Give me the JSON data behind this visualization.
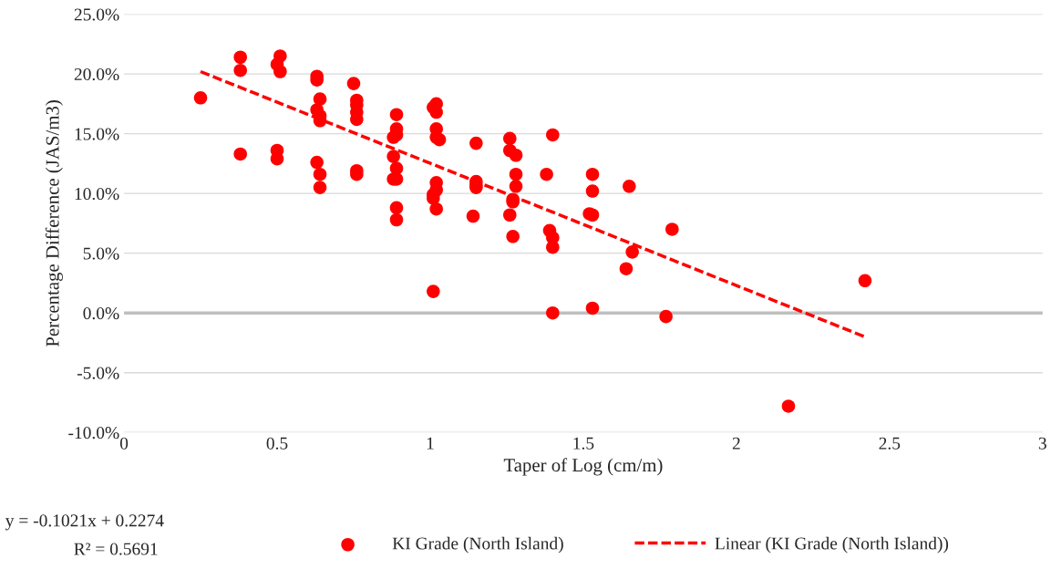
{
  "chart_data": {
    "type": "scatter",
    "xlabel": "Taper of Log (cm/m)",
    "ylabel": "Percentage Difference (JAS/m3)",
    "xlim": [
      0,
      3
    ],
    "xticks": [
      0,
      0.5,
      1,
      1.5,
      2,
      2.5,
      3
    ],
    "ylim": [
      -10,
      25
    ],
    "yticks": [
      {
        "value": -10,
        "label": "-10.0%"
      },
      {
        "value": -5,
        "label": "-5.0%"
      },
      {
        "value": 0,
        "label": "0.0%"
      },
      {
        "value": 5,
        "label": "5.0%"
      },
      {
        "value": 10,
        "label": "10.0%"
      },
      {
        "value": 15,
        "label": "15.0%"
      },
      {
        "value": 20,
        "label": "20.0%"
      },
      {
        "value": 25,
        "label": "25.0%"
      }
    ],
    "grid": "y",
    "legend": "bottom",
    "ref_lines": [
      {
        "axis": "y",
        "value": 0,
        "color": "#bfbfbf"
      }
    ],
    "annotations": [
      "y = -0.1021x + 0.2274",
      "R² = 0.5691"
    ],
    "series": [
      {
        "name": "KI Grade (North Island)",
        "marker": "circle",
        "color": "#ff0000",
        "x": [
          0.25,
          0.38,
          0.38,
          0.38,
          0.51,
          0.5,
          0.51,
          0.5,
          0.5,
          0.63,
          0.63,
          0.64,
          0.63,
          0.64,
          0.64,
          0.63,
          0.64,
          0.64,
          0.75,
          0.76,
          0.76,
          0.76,
          0.76,
          0.76,
          0.76,
          0.89,
          0.89,
          0.89,
          0.88,
          0.88,
          0.89,
          0.88,
          0.89,
          0.89,
          0.89,
          1.02,
          1.01,
          1.02,
          1.02,
          1.02,
          1.03,
          1.02,
          1.02,
          1.01,
          1.01,
          1.02,
          1.01,
          1.15,
          1.15,
          1.15,
          1.15,
          1.14,
          1.26,
          1.26,
          1.28,
          1.28,
          1.28,
          1.27,
          1.27,
          1.26,
          1.27,
          1.4,
          1.38,
          1.39,
          1.4,
          1.4,
          1.4,
          1.53,
          1.53,
          1.52,
          1.53,
          1.53,
          1.65,
          1.66,
          1.64,
          1.79,
          1.77,
          2.17,
          2.42
        ],
        "values": [
          18.0,
          21.4,
          20.3,
          13.3,
          21.5,
          20.8,
          20.2,
          13.6,
          12.9,
          19.8,
          19.5,
          17.9,
          17.0,
          16.5,
          16.1,
          12.6,
          11.6,
          10.5,
          19.2,
          17.8,
          17.4,
          16.8,
          16.2,
          11.9,
          11.6,
          16.6,
          15.4,
          14.9,
          14.7,
          13.1,
          12.1,
          11.2,
          11.2,
          8.8,
          7.8,
          17.5,
          17.2,
          16.8,
          15.4,
          14.7,
          14.5,
          10.9,
          10.3,
          9.9,
          9.6,
          8.7,
          1.8,
          14.2,
          11.0,
          10.7,
          10.5,
          8.1,
          14.6,
          13.6,
          13.2,
          11.6,
          10.6,
          9.5,
          9.3,
          8.2,
          6.4,
          14.9,
          11.6,
          6.9,
          6.3,
          5.5,
          0.0,
          11.6,
          10.2,
          8.3,
          8.2,
          0.4,
          10.6,
          5.1,
          3.7,
          7.0,
          -0.3,
          -7.8,
          2.7
        ]
      },
      {
        "name": "Linear (KI Grade (North Island))",
        "type": "line",
        "line_style": "dashed",
        "color": "#ff0000",
        "x": [
          0.25,
          2.42
        ],
        "values": [
          20.2,
          -2.0
        ]
      }
    ]
  }
}
